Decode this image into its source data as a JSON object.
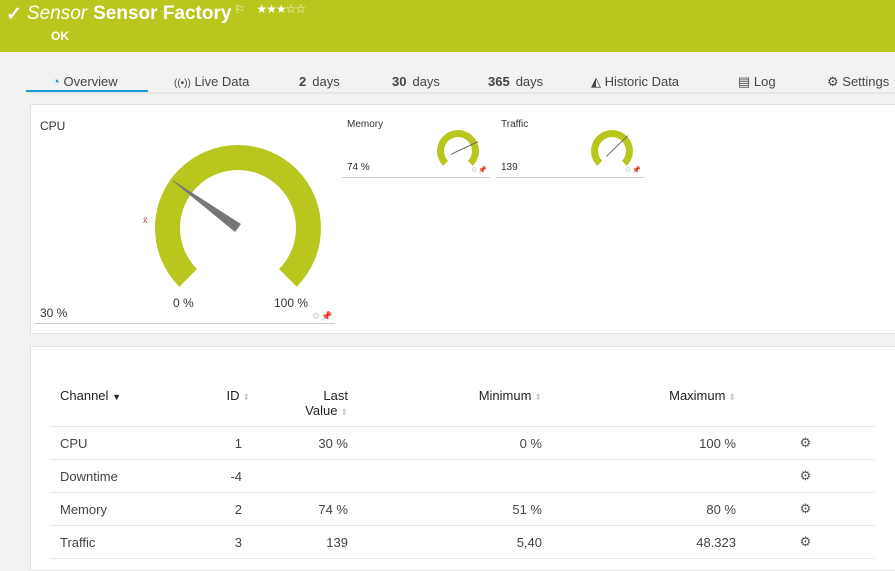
{
  "header": {
    "type_label": "Sensor",
    "name": "Sensor Factory",
    "status": "OK",
    "priority_stars": "★★★☆☆",
    "priority": 3,
    "flag_icon": "flag-icon",
    "color": "#b9c61d"
  },
  "tabs": [
    {
      "label": "Overview",
      "icon": "gauge-icon",
      "active": true
    },
    {
      "label": "Live Data",
      "icon": "broadcast-icon"
    },
    {
      "num": "2",
      "label": "days"
    },
    {
      "num": "30",
      "label": "days"
    },
    {
      "num": "365",
      "label": "days"
    },
    {
      "label": "Historic Data",
      "icon": "area-chart-icon"
    },
    {
      "label": "Log",
      "icon": "list-icon"
    },
    {
      "label": "Settings",
      "icon": "gear-icon"
    }
  ],
  "gauges": {
    "cpu": {
      "label": "CPU",
      "value": "30 %",
      "min_label": "0 %",
      "max_label": "100 %",
      "avg_marker": "x̄",
      "needle_fraction": 0.3
    },
    "memory": {
      "label": "Memory",
      "value": "74 %",
      "needle_fraction": 0.74
    },
    "traffic": {
      "label": "Traffic",
      "value": "139",
      "needle_fraction": 0.67
    }
  },
  "table": {
    "headers": {
      "channel": "Channel",
      "id": "ID",
      "last_value_1": "Last",
      "last_value_2": "Value",
      "minimum": "Minimum",
      "maximum": "Maximum"
    },
    "rows": [
      {
        "channel": "CPU",
        "id": "1",
        "last": "30 %",
        "min": "0 %",
        "max": "100 %"
      },
      {
        "channel": "Downtime",
        "id": "-4",
        "last": "",
        "min": "",
        "max": ""
      },
      {
        "channel": "Memory",
        "id": "2",
        "last": "74 %",
        "min": "51 %",
        "max": "80 %"
      },
      {
        "channel": "Traffic",
        "id": "3",
        "last": "139",
        "min": "5,40",
        "max": "48.323"
      }
    ]
  }
}
